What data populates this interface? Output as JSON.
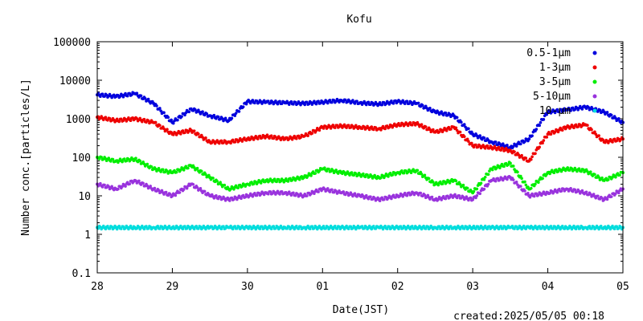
{
  "chart_data": {
    "type": "scatter",
    "title": "Kofu",
    "xlabel": "Date(JST)",
    "ylabel": "Number conc.[particles/L]",
    "y_scale": "log",
    "ylim": [
      0.1,
      100000
    ],
    "y_ticks": [
      "0.1",
      "1",
      "10",
      "100",
      "1000",
      "10000",
      "100000"
    ],
    "x_ticks": [
      "28",
      "29",
      "30",
      "01",
      "02",
      "03",
      "04",
      "05"
    ],
    "xlim": [
      "2025-04-28T00:00",
      "2025-05-05T00:00"
    ],
    "legend_position": "top-right",
    "series": [
      {
        "name": "0.5-1μm",
        "color": "#0000dd",
        "x": [
          "2025-04-28T00:00",
          "2025-04-28T06:00",
          "2025-04-28T12:00",
          "2025-04-28T18:00",
          "2025-04-29T00:00",
          "2025-04-29T06:00",
          "2025-04-29T12:00",
          "2025-04-29T18:00",
          "2025-04-30T00:00",
          "2025-04-30T06:00",
          "2025-04-30T12:00",
          "2025-04-30T18:00",
          "2025-05-01T00:00",
          "2025-05-01T06:00",
          "2025-05-01T12:00",
          "2025-05-01T18:00",
          "2025-05-02T00:00",
          "2025-05-02T06:00",
          "2025-05-02T12:00",
          "2025-05-02T18:00",
          "2025-05-03T00:00",
          "2025-05-03T06:00",
          "2025-05-03T12:00",
          "2025-05-03T18:00",
          "2025-05-04T00:00",
          "2025-05-04T06:00",
          "2025-05-04T12:00",
          "2025-05-04T18:00",
          "2025-05-05T00:00"
        ],
        "y": [
          4200,
          3800,
          4500,
          2500,
          800,
          1800,
          1200,
          900,
          2800,
          2700,
          2600,
          2500,
          2700,
          3000,
          2600,
          2400,
          2800,
          2500,
          1500,
          1200,
          400,
          250,
          180,
          300,
          1500,
          1700,
          2000,
          1500,
          800
        ]
      },
      {
        "name": "1-3μm",
        "color": "#ee0000",
        "x": [
          "2025-04-28T00:00",
          "2025-04-28T06:00",
          "2025-04-28T12:00",
          "2025-04-28T18:00",
          "2025-04-29T00:00",
          "2025-04-29T06:00",
          "2025-04-29T12:00",
          "2025-04-29T18:00",
          "2025-04-30T00:00",
          "2025-04-30T06:00",
          "2025-04-30T12:00",
          "2025-04-30T18:00",
          "2025-05-01T00:00",
          "2025-05-01T06:00",
          "2025-05-01T12:00",
          "2025-05-01T18:00",
          "2025-05-02T00:00",
          "2025-05-02T06:00",
          "2025-05-02T12:00",
          "2025-05-02T18:00",
          "2025-05-03T00:00",
          "2025-05-03T06:00",
          "2025-05-03T12:00",
          "2025-05-03T18:00",
          "2025-05-04T00:00",
          "2025-05-04T06:00",
          "2025-05-04T12:00",
          "2025-05-04T18:00",
          "2025-05-05T00:00"
        ],
        "y": [
          1100,
          900,
          1000,
          800,
          400,
          500,
          250,
          250,
          300,
          350,
          300,
          350,
          600,
          650,
          600,
          550,
          700,
          750,
          450,
          600,
          200,
          180,
          150,
          80,
          400,
          600,
          700,
          250,
          300
        ]
      },
      {
        "name": "3-5μm",
        "color": "#00ee00",
        "x": [
          "2025-04-28T00:00",
          "2025-04-28T06:00",
          "2025-04-28T12:00",
          "2025-04-28T18:00",
          "2025-04-29T00:00",
          "2025-04-29T06:00",
          "2025-04-29T12:00",
          "2025-04-29T18:00",
          "2025-04-30T00:00",
          "2025-04-30T06:00",
          "2025-04-30T12:00",
          "2025-04-30T18:00",
          "2025-05-01T00:00",
          "2025-05-01T06:00",
          "2025-05-01T12:00",
          "2025-05-01T18:00",
          "2025-05-02T00:00",
          "2025-05-02T06:00",
          "2025-05-02T12:00",
          "2025-05-02T18:00",
          "2025-05-03T00:00",
          "2025-05-03T06:00",
          "2025-05-03T12:00",
          "2025-05-03T18:00",
          "2025-05-04T00:00",
          "2025-05-04T06:00",
          "2025-05-04T12:00",
          "2025-05-04T18:00",
          "2025-05-05T00:00"
        ],
        "y": [
          100,
          80,
          90,
          50,
          40,
          60,
          30,
          15,
          20,
          25,
          25,
          30,
          50,
          40,
          35,
          30,
          40,
          45,
          20,
          25,
          12,
          50,
          70,
          15,
          40,
          50,
          45,
          25,
          40
        ]
      },
      {
        "name": "5-10μm",
        "color": "#9933dd",
        "x": [
          "2025-04-28T00:00",
          "2025-04-28T06:00",
          "2025-04-28T12:00",
          "2025-04-28T18:00",
          "2025-04-29T00:00",
          "2025-04-29T06:00",
          "2025-04-29T12:00",
          "2025-04-29T18:00",
          "2025-04-30T00:00",
          "2025-04-30T06:00",
          "2025-04-30T12:00",
          "2025-04-30T18:00",
          "2025-05-01T00:00",
          "2025-05-01T06:00",
          "2025-05-01T12:00",
          "2025-05-01T18:00",
          "2025-05-02T00:00",
          "2025-05-02T06:00",
          "2025-05-02T12:00",
          "2025-05-02T18:00",
          "2025-05-03T00:00",
          "2025-05-03T06:00",
          "2025-05-03T12:00",
          "2025-05-03T18:00",
          "2025-05-04T00:00",
          "2025-05-04T06:00",
          "2025-05-04T12:00",
          "2025-05-04T18:00",
          "2025-05-05T00:00"
        ],
        "y": [
          20,
          15,
          25,
          15,
          10,
          20,
          10,
          8,
          10,
          12,
          12,
          10,
          15,
          12,
          10,
          8,
          10,
          12,
          8,
          10,
          8,
          25,
          30,
          10,
          12,
          15,
          12,
          8,
          15
        ]
      },
      {
        "name": "10-μm",
        "color": "#00dddd",
        "x": [
          "2025-04-28T00:00",
          "2025-04-28T06:00",
          "2025-04-28T12:00",
          "2025-04-28T18:00",
          "2025-04-29T00:00",
          "2025-04-29T06:00",
          "2025-04-29T12:00",
          "2025-04-29T18:00",
          "2025-04-30T00:00",
          "2025-04-30T06:00",
          "2025-04-30T12:00",
          "2025-04-30T18:00",
          "2025-05-01T00:00",
          "2025-05-01T06:00",
          "2025-05-01T12:00",
          "2025-05-01T18:00",
          "2025-05-02T00:00",
          "2025-05-02T06:00",
          "2025-05-02T12:00",
          "2025-05-02T18:00",
          "2025-05-03T00:00",
          "2025-05-03T06:00",
          "2025-05-03T12:00",
          "2025-05-03T18:00",
          "2025-05-04T00:00",
          "2025-05-04T06:00",
          "2025-05-04T12:00",
          "2025-05-04T18:00",
          "2025-05-05T00:00"
        ],
        "y": [
          1.5,
          1.5,
          1.5,
          1.5,
          1.5,
          1.5,
          1.5,
          1.5,
          1.5,
          1.5,
          1.5,
          1.5,
          1.5,
          1.5,
          1.5,
          1.5,
          1.5,
          1.5,
          1.5,
          1.5,
          1.5,
          1.5,
          1.5,
          1.5,
          1.5,
          1.5,
          1.5,
          1.5,
          1.5
        ]
      }
    ]
  },
  "footer": {
    "created": "created:2025/05/05 00:18"
  }
}
